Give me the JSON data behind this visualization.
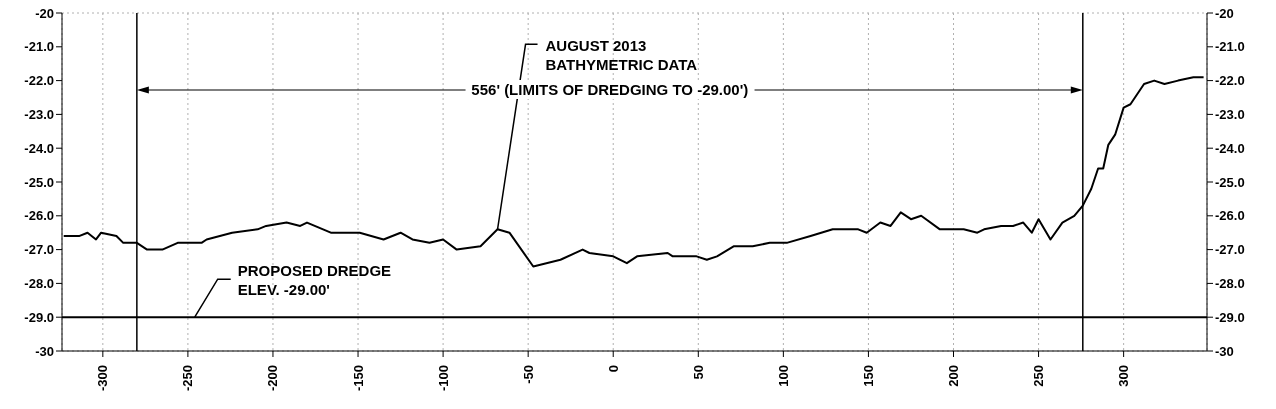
{
  "chart_data": {
    "type": "line",
    "x": [
      -323,
      -314,
      -309,
      -304,
      -301,
      -292,
      -288,
      -280,
      -274,
      -265,
      -256,
      -242,
      -239,
      -224,
      -209,
      -204,
      -192,
      -184,
      -180,
      -166,
      -149,
      -135,
      -125,
      -118,
      -108,
      -100,
      -92,
      -78,
      -68,
      -61,
      -47,
      -31,
      -18,
      -14,
      0,
      8,
      14,
      32,
      35,
      49,
      55,
      61,
      71,
      82,
      92,
      102,
      116,
      129,
      144,
      149,
      157,
      163,
      169,
      175,
      181,
      192,
      198,
      206,
      214,
      218,
      228,
      235,
      241,
      246,
      250,
      257,
      264,
      271,
      276,
      281,
      285,
      288,
      291,
      295,
      300,
      304,
      312,
      318,
      324,
      332,
      341,
      347
    ],
    "series": [
      {
        "color": "#000000",
        "values": [
          -26.6,
          -26.6,
          -26.5,
          -26.7,
          -26.5,
          -26.6,
          -26.8,
          -26.8,
          -27.0,
          -27.0,
          -26.8,
          -26.8,
          -26.7,
          -26.5,
          -26.4,
          -26.3,
          -26.2,
          -26.3,
          -26.2,
          -26.5,
          -26.5,
          -26.7,
          -26.5,
          -26.7,
          -26.8,
          -26.7,
          -27.0,
          -26.9,
          -26.4,
          -26.5,
          -27.5,
          -27.3,
          -27.0,
          -27.1,
          -27.2,
          -27.4,
          -27.2,
          -27.1,
          -27.2,
          -27.2,
          -27.3,
          -27.2,
          -26.9,
          -26.9,
          -26.8,
          -26.8,
          -26.6,
          -26.4,
          -26.4,
          -26.5,
          -26.2,
          -26.3,
          -25.9,
          -26.1,
          -26.0,
          -26.4,
          -26.4,
          -26.4,
          -26.5,
          -26.4,
          -26.3,
          -26.3,
          -26.2,
          -26.5,
          -26.1,
          -26.7,
          -26.2,
          -26.0,
          -25.7,
          -25.2,
          -24.6,
          -24.6,
          -23.9,
          -23.6,
          -22.8,
          -22.7,
          -22.1,
          -22.0,
          -22.1,
          -22.0,
          -21.9,
          -21.9
        ]
      }
    ],
    "xlim": [
      -324,
      349
    ],
    "ylim": [
      -30,
      -20
    ],
    "y2lim": [
      -30,
      -20
    ],
    "xticks": [
      -300,
      -250,
      -200,
      -150,
      -100,
      -50,
      0,
      50,
      100,
      150,
      200,
      250,
      300
    ],
    "yticks": [
      -30,
      {
        "value": -29,
        "label": "-29.0"
      },
      {
        "value": -28,
        "label": "-28.0"
      },
      {
        "value": -27,
        "label": "-27.0"
      },
      {
        "value": -26,
        "label": "-26.0"
      },
      {
        "value": -25,
        "label": "-25.0"
      },
      {
        "value": -24,
        "label": "-24.0"
      },
      {
        "value": -23,
        "label": "-23.0"
      },
      {
        "value": -22,
        "label": "-22.0"
      },
      {
        "value": -21,
        "label": "-21.0"
      },
      -20
    ],
    "y2ticks": [
      -30,
      {
        "value": -29,
        "label": "-29.0"
      },
      {
        "value": -28,
        "label": "-28.0"
      },
      {
        "value": -27,
        "label": "-27.0"
      },
      {
        "value": -26,
        "label": "-26.0"
      },
      {
        "value": -25,
        "label": "-25.0"
      },
      {
        "value": -24,
        "label": "-24.0"
      },
      {
        "value": -23,
        "label": "-23.0"
      },
      {
        "value": -22,
        "label": "-22.0"
      },
      {
        "value": -21,
        "label": "-21.0"
      },
      -20
    ],
    "ref_lines": [
      {
        "axis": "x",
        "value": -280,
        "color": "#000000"
      },
      {
        "axis": "x",
        "value": 276,
        "color": "#000000"
      },
      {
        "axis": "y",
        "value": -29,
        "color": "#000000"
      }
    ],
    "annotations": [
      "556' (LIMITS OF DREDGING TO -29.00')",
      {
        "text": "AUGUST 2013 BATHYMETRIC DATA",
        "x": -68,
        "y": -26.4
      },
      {
        "text": "PROPOSED DREDGE ELEV. -29.00'",
        "x": -246,
        "y": -29
      }
    ],
    "grid": true,
    "legend": false
  }
}
